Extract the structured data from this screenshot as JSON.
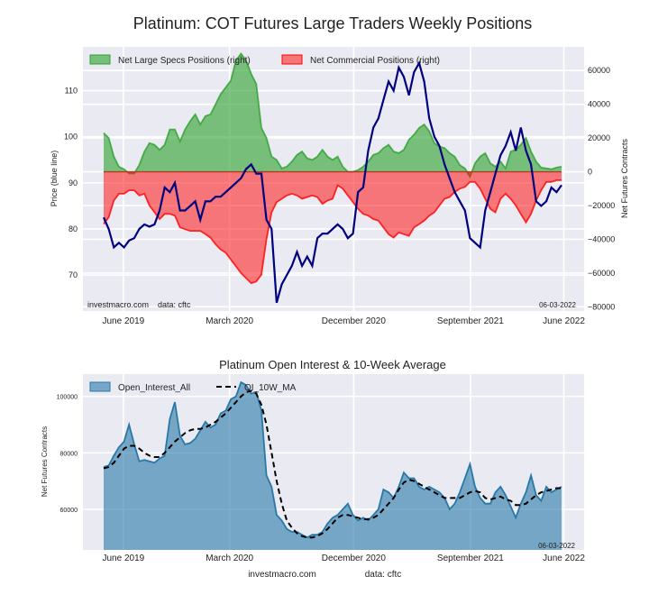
{
  "figure": {
    "title": "Platinum: COT Futures Large Traders Weekly Positions",
    "footer_site": "investmacro.com",
    "footer_source": "data: cftc"
  },
  "chart_data": [
    {
      "id": "positions",
      "type": "area",
      "title": "Platinum: COT Futures Large Traders Weekly Positions",
      "xlabel": "",
      "ylabel_left": "Price (blue line)",
      "ylabel_right": "Net Futures Contracts",
      "x_tick_labels": [
        "June 2019",
        "March 2020",
        "December 2020",
        "September 2021",
        "June 2022"
      ],
      "x_tick_positions": [
        0.043,
        0.275,
        0.546,
        0.801,
        1.005
      ],
      "y_left_ticks": [
        70,
        80,
        90,
        100,
        110
      ],
      "y_left_lim": [
        62.2,
        119.5
      ],
      "y_right_ticks": [
        -80000,
        -60000,
        -40000,
        -20000,
        0,
        20000,
        40000,
        60000
      ],
      "y_right_lim": [
        -82500,
        74000
      ],
      "grid": true,
      "legend": "top-left",
      "watermark_left": "investmacro.com    data: cftc",
      "date_stamp": "06-03-2022",
      "date_range": [
        "2019-05-28",
        "2022-05-31"
      ],
      "series": [
        {
          "name": "Net Large Specs Positions (right)",
          "kind": "area",
          "axis": "right",
          "color": "#2ca02c",
          "values": [
            23000,
            20000,
            9000,
            3000,
            1500,
            -1000,
            -1000,
            4000,
            12000,
            17000,
            16000,
            13000,
            16000,
            25000,
            25000,
            18000,
            25000,
            30000,
            34000,
            28000,
            33000,
            34000,
            40000,
            46000,
            50000,
            54000,
            66000,
            70000,
            66000,
            58000,
            52000,
            26000,
            20000,
            9000,
            7000,
            2000,
            3000,
            6000,
            10000,
            12000,
            8000,
            7000,
            9000,
            13000,
            9000,
            7000,
            9000,
            3000,
            0,
            0,
            1000,
            3000,
            6000,
            10000,
            11000,
            14000,
            16000,
            12000,
            11000,
            13000,
            19000,
            22000,
            26000,
            28000,
            24000,
            17000,
            15000,
            14000,
            11000,
            9000,
            4000,
            2000,
            -3000,
            5000,
            9000,
            11000,
            5000,
            3000,
            6000,
            2000,
            12000,
            13000,
            16000,
            20000,
            12000,
            6000,
            2500,
            2000,
            1500,
            2500,
            3000
          ]
        },
        {
          "name": "Net Commercial Positions (right)",
          "kind": "area",
          "axis": "right",
          "color": "#ff0000",
          "values": [
            -31000,
            -27000,
            -17000,
            -13000,
            -13000,
            -11000,
            -11000,
            -14000,
            -13000,
            -20000,
            -24000,
            -28000,
            -25000,
            -25000,
            -26000,
            -33000,
            -34000,
            -35000,
            -35000,
            -35000,
            -37000,
            -39000,
            -43000,
            -46000,
            -48000,
            -52000,
            -56000,
            -60000,
            -63000,
            -66000,
            -65000,
            -61000,
            -40000,
            -24000,
            -18000,
            -16000,
            -14000,
            -13000,
            -14000,
            -16000,
            -15000,
            -14000,
            -15000,
            -19000,
            -17000,
            -16000,
            -8000,
            -10000,
            -14000,
            -18000,
            -22000,
            -25000,
            -26000,
            -28000,
            -29000,
            -33000,
            -37000,
            -39000,
            -36000,
            -37000,
            -38000,
            -33000,
            -31000,
            -29000,
            -26000,
            -24000,
            -20000,
            -16000,
            -15000,
            -12000,
            -10000,
            -9000,
            -6000,
            -6000,
            -10000,
            -16000,
            -22000,
            -24000,
            -16000,
            -13000,
            -16000,
            -20000,
            -25000,
            -30000,
            -25000,
            -17000,
            -11000,
            -6000,
            -6000,
            -5000,
            -5000
          ]
        },
        {
          "name": "Price (blue line)",
          "kind": "line",
          "axis": "left",
          "color": "#000080",
          "values": [
            82.5,
            80,
            76,
            77,
            76,
            77.5,
            78,
            80,
            81,
            80.5,
            81,
            84,
            89,
            88,
            90,
            84,
            84,
            85,
            86,
            82,
            86,
            86,
            87,
            87,
            88,
            89,
            90,
            91,
            93,
            94,
            92,
            92,
            82,
            80,
            64,
            68,
            70,
            72,
            75,
            72,
            74,
            72,
            78,
            79,
            79,
            80,
            81,
            80,
            78,
            79,
            88,
            89,
            97,
            102,
            104,
            108,
            112,
            110,
            115,
            113,
            109,
            114,
            116,
            112,
            104,
            100,
            98,
            94,
            91,
            88,
            86,
            84,
            78,
            77,
            76,
            84,
            88,
            92,
            96,
            98,
            101,
            97,
            102,
            97,
            94,
            86,
            85,
            86,
            89,
            88,
            89.5
          ]
        }
      ]
    },
    {
      "id": "open_interest",
      "type": "area",
      "title": "Platinum Open Interest & 10-Week Average",
      "xlabel": "",
      "ylabel": "Net Futures Contracts",
      "x_tick_labels": [
        "June 2019",
        "March 2020",
        "December 2020",
        "September 2021",
        "June 2022"
      ],
      "x_tick_positions": [
        0.043,
        0.275,
        0.546,
        0.801,
        1.005
      ],
      "y_ticks": [
        60000,
        80000,
        100000
      ],
      "y_lim": [
        45600,
        107900
      ],
      "grid": true,
      "legend": "top-left",
      "date_stamp": "06-03-2022",
      "date_range": [
        "2019-05-28",
        "2022-05-31"
      ],
      "series": [
        {
          "name": "Open_Interest_All",
          "kind": "area",
          "color": "#2878a8",
          "values": [
            75000,
            75500,
            79000,
            82000,
            84000,
            90000,
            83000,
            77000,
            77500,
            77000,
            76500,
            78000,
            79000,
            92000,
            98000,
            86000,
            83000,
            83500,
            85000,
            88000,
            91000,
            89000,
            90000,
            94000,
            95000,
            99000,
            100000,
            105000,
            104000,
            101000,
            101500,
            95000,
            72000,
            68000,
            58000,
            56000,
            53000,
            52000,
            52000,
            51000,
            50000,
            51000,
            51000,
            52000,
            55000,
            57000,
            58000,
            60000,
            62000,
            58000,
            56000,
            57000,
            56000,
            58000,
            60000,
            67000,
            66000,
            64000,
            68000,
            73000,
            71000,
            71000,
            68000,
            67000,
            68000,
            67000,
            66000,
            64000,
            60000,
            62000,
            66000,
            71000,
            76000,
            68000,
            64000,
            62000,
            62000,
            66000,
            68000,
            65000,
            61000,
            57000,
            62000,
            66000,
            72000,
            65000,
            63000,
            68000,
            66000,
            67000,
            68000
          ]
        },
        {
          "name": "OI_10W_MA",
          "kind": "line",
          "dashed": true,
          "color": "#000000",
          "values": [
            74500,
            75000,
            76500,
            79000,
            81500,
            82500,
            82500,
            81500,
            80000,
            79000,
            78500,
            78500,
            80000,
            82000,
            84000,
            85500,
            87000,
            88000,
            88500,
            88500,
            89000,
            90000,
            91000,
            92500,
            94000,
            96000,
            98000,
            100000,
            101500,
            102000,
            101000,
            97000,
            90000,
            80000,
            70000,
            62000,
            56000,
            53500,
            51500,
            50500,
            50000,
            50000,
            50500,
            51500,
            53000,
            55000,
            57000,
            58000,
            58000,
            57500,
            57000,
            56500,
            56500,
            57000,
            58000,
            60000,
            62000,
            64000,
            67000,
            69500,
            70500,
            70000,
            69000,
            68000,
            67000,
            66000,
            65000,
            64000,
            64000,
            64000,
            64000,
            65000,
            66000,
            66500,
            66000,
            64000,
            63500,
            64000,
            64500,
            63500,
            63000,
            61500,
            61500,
            62000,
            63500,
            65000,
            66000,
            66500,
            67000,
            67500,
            67500
          ]
        }
      ]
    }
  ]
}
